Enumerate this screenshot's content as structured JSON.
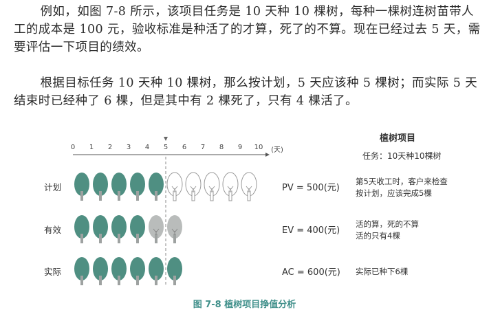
{
  "paragraphs": {
    "p1": "例如，如图 7-8 所示，该项目任务是 10 天种 10 棵树，每种一棵树连树苗带人工的成本是 100 元，验收标准是种活了的才算，死了的不算。现在已经过去 5 天，需要评估一下项目的绩效。",
    "p2": "根据目标任务 10 天种 10 棵树，那么按计划，5 天应该种 5 棵树；而实际 5 天结束时已经种了 6 棵，但是其中有 2 棵死了，只有 4 棵活了。"
  },
  "figure": {
    "axis_ticks": [
      "0",
      "1",
      "2",
      "3",
      "4",
      "5",
      "6",
      "7",
      "8",
      "9",
      "10"
    ],
    "axis_unit": "(天)",
    "side_title": "植树项目",
    "side_task": "任务：10天种10棵树",
    "rows": [
      {
        "label": "计划",
        "value": "PV = 500(元)",
        "note1": "第5天收工时，客户来检查",
        "note2": "按计划，应该完成5棵",
        "trees": [
          "green",
          "green",
          "green",
          "green",
          "green",
          "outline",
          "outline",
          "outline",
          "outline",
          "outline"
        ]
      },
      {
        "label": "有效",
        "value": "EV = 400(元)",
        "note1": "活的算，死的不算",
        "note2": "活的只有4棵",
        "trees": [
          "green",
          "green",
          "green",
          "green",
          "gray",
          "gray"
        ]
      },
      {
        "label": "实际",
        "value": "AC = 600(元)",
        "note1": "实际已种下6棵",
        "note2": "",
        "trees": [
          "green",
          "green",
          "green",
          "green",
          "green",
          "green"
        ]
      }
    ],
    "caption": "图 7-8    植树项目挣值分析"
  },
  "colors": {
    "tree_green": "#4f8f82",
    "tree_gray": "#b9bcbb",
    "caption": "#3f8f8a"
  }
}
